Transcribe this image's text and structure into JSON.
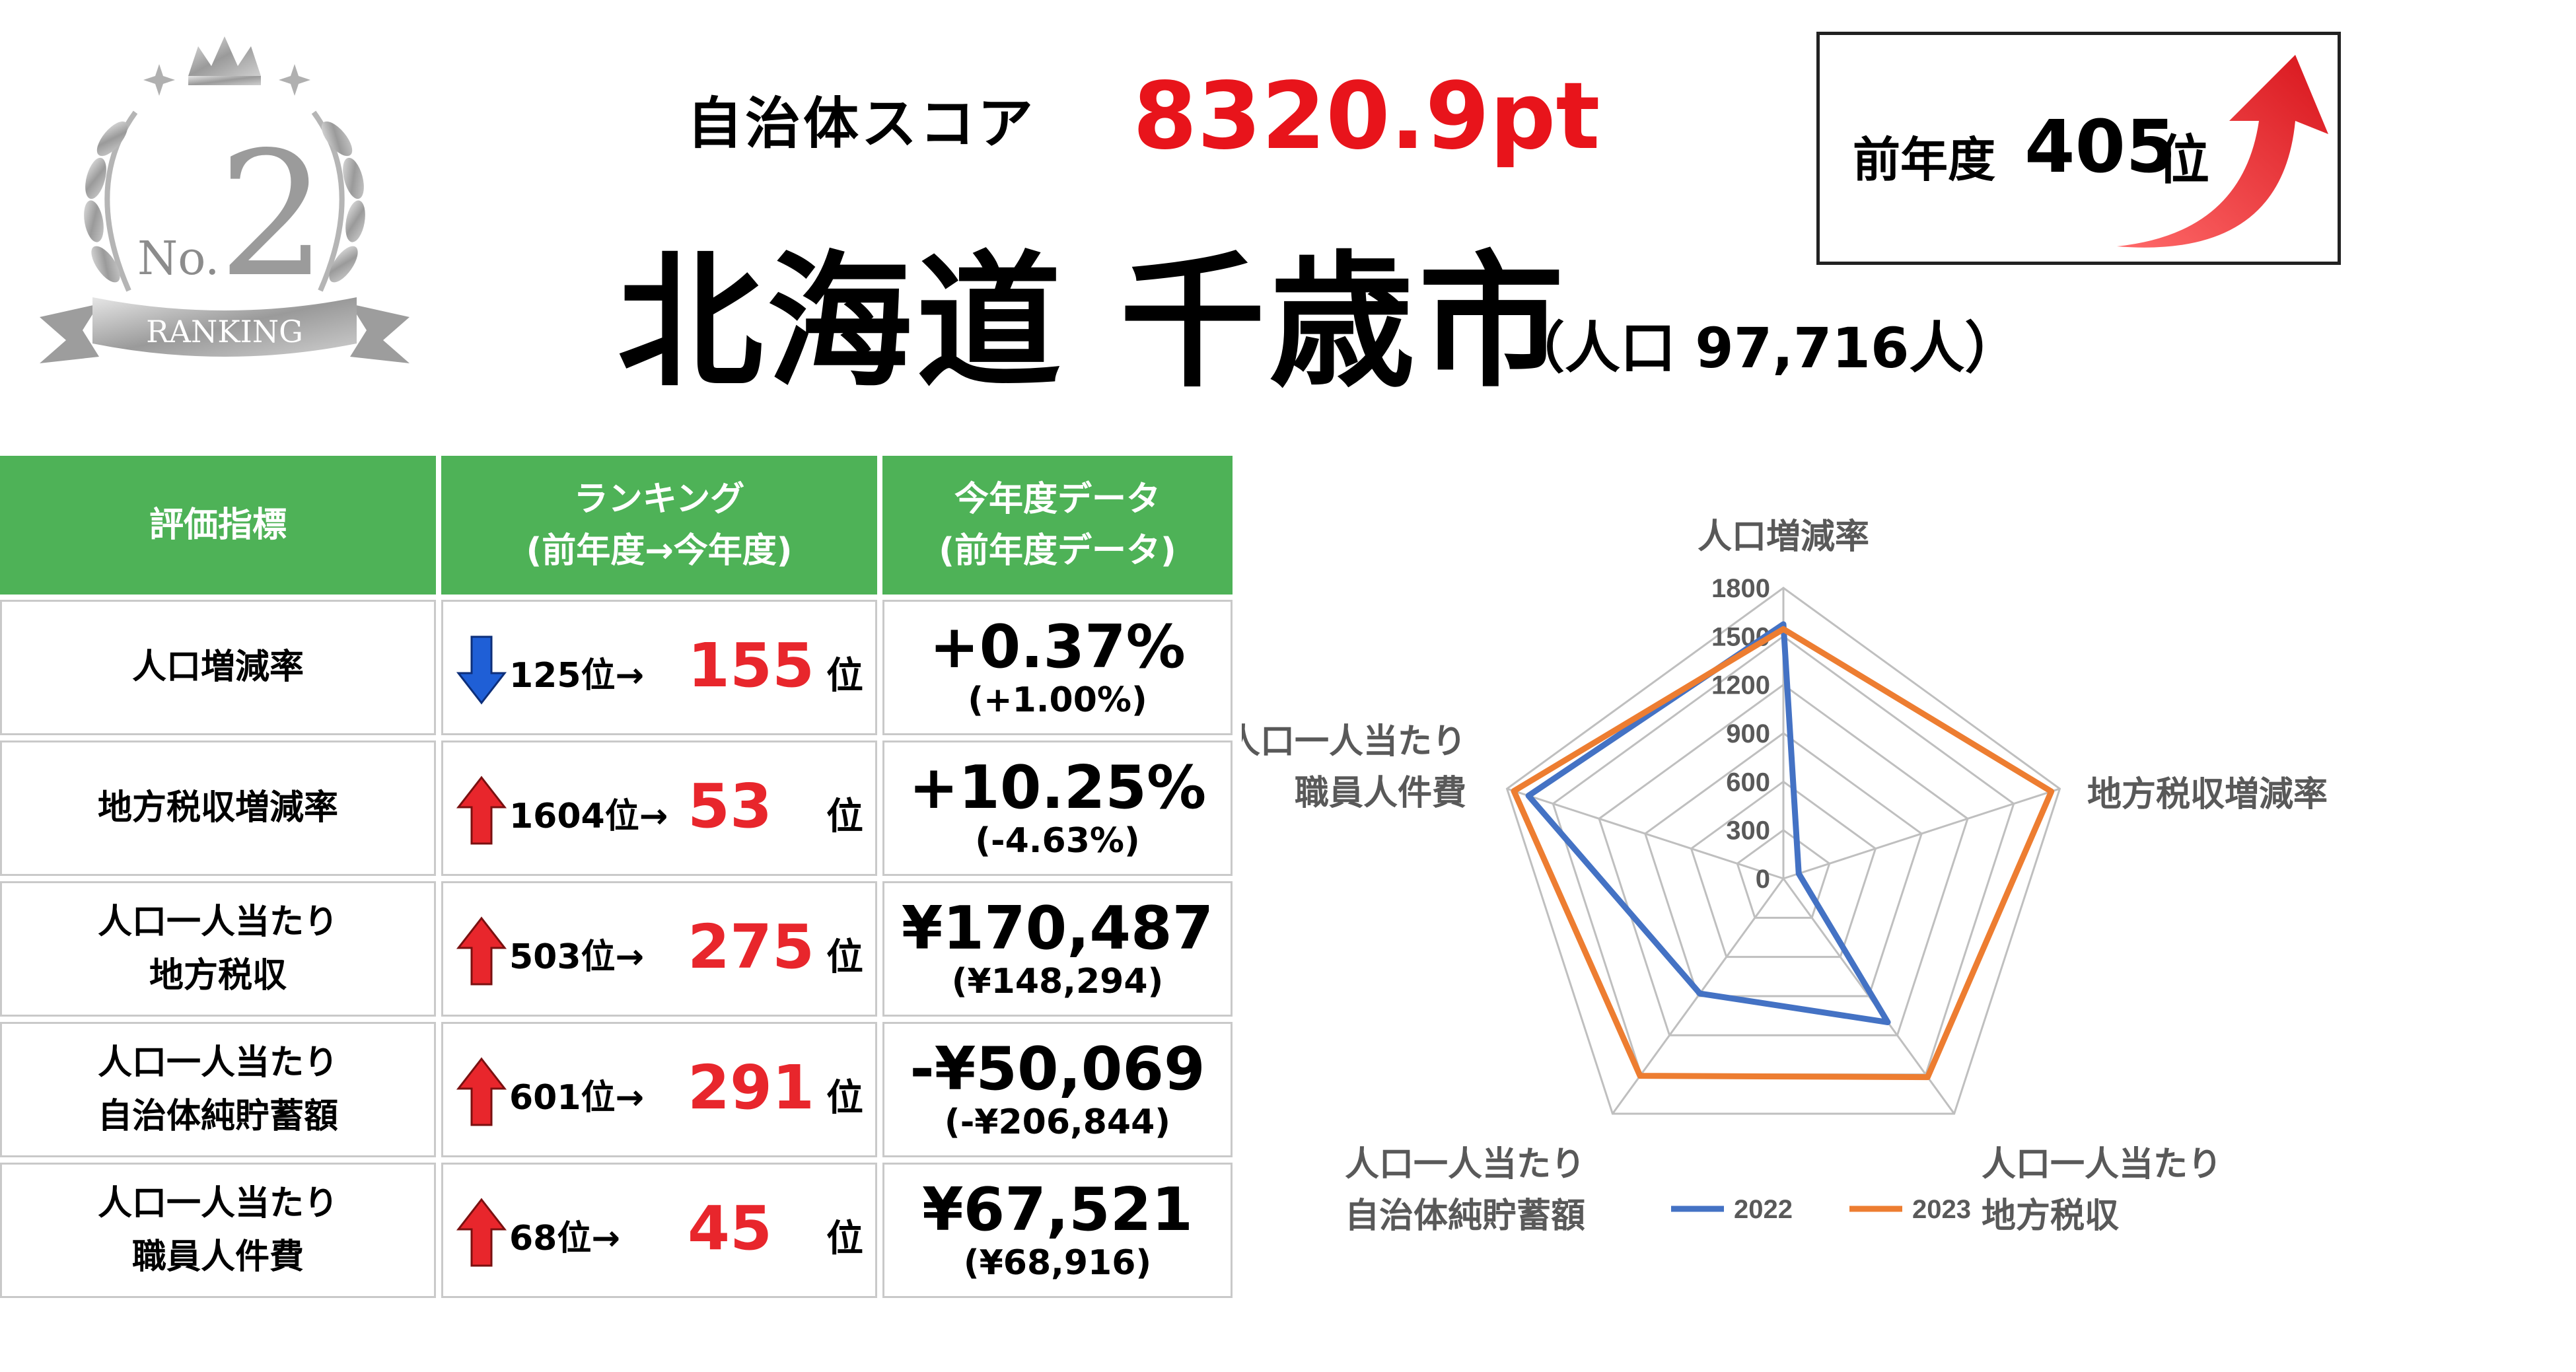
{
  "badge": {
    "number": "2",
    "prefix": "No.",
    "ribbon": "RANKING"
  },
  "header": {
    "score_label": "自治体スコア",
    "score_value": "8320.9pt",
    "city": "北海道 千歳市",
    "population": "（人口 97,716人）"
  },
  "previous": {
    "label": "前年度",
    "rank": "405",
    "unit": "位"
  },
  "table": {
    "headers": [
      {
        "line1": "評価指標",
        "line2": ""
      },
      {
        "line1": "ランキング",
        "line2": "(前年度→今年度)"
      },
      {
        "line1": "今年度データ",
        "line2": "(前年度データ)"
      }
    ],
    "rows": [
      {
        "indicator1": "人口増減率",
        "indicator2": "",
        "trend": "down",
        "prev_rank": "125位→",
        "rank": "155",
        "unit": "位",
        "value": "+0.37%",
        "prev_value": "(+1.00%)"
      },
      {
        "indicator1": "地方税収増減率",
        "indicator2": "",
        "trend": "up",
        "prev_rank": "1604位→",
        "rank": "53",
        "unit": "位",
        "value": "+10.25%",
        "prev_value": "(-4.63%)"
      },
      {
        "indicator1": "人口一人当たり",
        "indicator2": "地方税収",
        "trend": "up",
        "prev_rank": "503位→",
        "rank": "275",
        "unit": "位",
        "value": "¥170,487",
        "prev_value": "(¥148,294)"
      },
      {
        "indicator1": "人口一人当たり",
        "indicator2": "自治体純貯蓄額",
        "trend": "up",
        "prev_rank": "601位→",
        "rank": "291",
        "unit": "位",
        "value": "-¥50,069",
        "prev_value": "(-¥206,844)"
      },
      {
        "indicator1": "人口一人当たり",
        "indicator2": "職員人件費",
        "trend": "up",
        "prev_rank": "68位→",
        "rank": "45",
        "unit": "位",
        "value": "¥67,521",
        "prev_value": "(¥68,916)"
      }
    ]
  },
  "colors": {
    "green": "#4eb257",
    "red": "#e8262c",
    "blue": "#1f5fd6",
    "series2022": "#4472c4",
    "series2023": "#ed7d31",
    "grid": "#bfbfbf"
  },
  "chart_data": {
    "type": "radar",
    "axes": [
      [
        "人口増減率"
      ],
      [
        "地方税収増減率"
      ],
      [
        "人口一人当たり",
        "地方税収"
      ],
      [
        "人口一人当たり",
        "自治体純貯蓄額"
      ],
      [
        "人口一人当たり",
        "職員人件費"
      ]
    ],
    "ticks": [
      "0",
      "300",
      "600",
      "900",
      "1200",
      "1500",
      "1800"
    ],
    "rmax": 1800,
    "series": [
      {
        "name": "2022",
        "values": [
          1575,
          100,
          1100,
          880,
          1660
        ]
      },
      {
        "name": "2023",
        "values": [
          1545,
          1745,
          1520,
          1510,
          1755
        ]
      }
    ],
    "legend_position": "bottom"
  }
}
